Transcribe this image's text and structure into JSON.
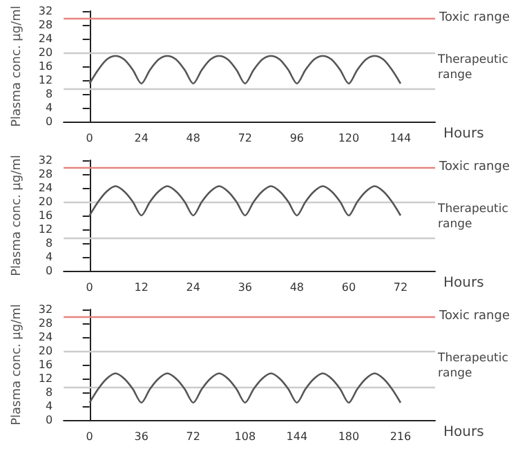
{
  "chart_data": [
    {
      "type": "line",
      "xlabel": "Hours",
      "ylabel": "Plasma conc. µg/ml",
      "xlim": [
        -12,
        160
      ],
      "xticks": [
        0,
        24,
        48,
        72,
        96,
        120,
        144
      ],
      "ylim": [
        0,
        32
      ],
      "yticks": [
        0,
        4,
        8,
        12,
        16,
        20,
        24,
        28,
        32
      ],
      "grid": false,
      "marker": "none",
      "line_style": "solid",
      "x": [
        0,
        4,
        8,
        12,
        16,
        20,
        24,
        28,
        32,
        36,
        40,
        44,
        48,
        52,
        56,
        60,
        64,
        68,
        72,
        76,
        80,
        84,
        88,
        92,
        96,
        100,
        104,
        108,
        112,
        116,
        120,
        124,
        128,
        132,
        136,
        140,
        144
      ],
      "series": [
        {
          "color": "#555555",
          "values": [
            11,
            15,
            18,
            19,
            18,
            15,
            11,
            15,
            18,
            19,
            18,
            15,
            11,
            15,
            18,
            19,
            18,
            15,
            11,
            15,
            18,
            19,
            18,
            15,
            11,
            15,
            18,
            19,
            18,
            15,
            11,
            15,
            18,
            19,
            18,
            15,
            11
          ]
        }
      ],
      "ref_lines": [
        {
          "axis": "y",
          "value": 30,
          "label": "Toxic range",
          "color": "#e8837e"
        },
        {
          "axis": "y",
          "value": 20,
          "label": null,
          "color": "#cccccc"
        },
        {
          "axis": "y",
          "value": 9.5,
          "label": null,
          "color": "#cccccc"
        }
      ],
      "annotations": [
        "Therapeutic range"
      ]
    },
    {
      "type": "line",
      "xlabel": "Hours",
      "ylabel": "Plasma conc. µg/ml",
      "xlim": [
        -6,
        80
      ],
      "xticks": [
        0,
        12,
        24,
        36,
        48,
        60,
        72
      ],
      "ylim": [
        0,
        32
      ],
      "yticks": [
        0,
        4,
        8,
        12,
        16,
        20,
        24,
        28,
        32
      ],
      "grid": false,
      "marker": "none",
      "line_style": "solid",
      "x": [
        0,
        2,
        4,
        6,
        8,
        10,
        12,
        14,
        16,
        18,
        20,
        22,
        24,
        26,
        28,
        30,
        32,
        34,
        36,
        38,
        40,
        42,
        44,
        46,
        48,
        50,
        52,
        54,
        56,
        58,
        60,
        62,
        64,
        66,
        68,
        70,
        72
      ],
      "series": [
        {
          "color": "#555555",
          "values": [
            16,
            20,
            23,
            24.5,
            23,
            20,
            16,
            20,
            23,
            24.5,
            23,
            20,
            16,
            20,
            23,
            24.5,
            23,
            20,
            16,
            20,
            23,
            24.5,
            23,
            20,
            16,
            20,
            23,
            24.5,
            23,
            20,
            16,
            20,
            23,
            24.5,
            23,
            20,
            16
          ]
        }
      ],
      "ref_lines": [
        {
          "axis": "y",
          "value": 30,
          "label": "Toxic range",
          "color": "#e8837e"
        },
        {
          "axis": "y",
          "value": 20,
          "label": null,
          "color": "#cccccc"
        },
        {
          "axis": "y",
          "value": 9.5,
          "label": null,
          "color": "#cccccc"
        }
      ],
      "annotations": [
        "Therapeutic range"
      ]
    },
    {
      "type": "line",
      "xlabel": "Hours",
      "ylabel": "Plasma conc. µg/ml",
      "xlim": [
        -18,
        240
      ],
      "xticks": [
        0,
        36,
        72,
        108,
        144,
        180,
        216
      ],
      "ylim": [
        0,
        32
      ],
      "yticks": [
        0,
        4,
        8,
        12,
        16,
        20,
        24,
        28,
        32
      ],
      "grid": false,
      "marker": "none",
      "line_style": "solid",
      "x": [
        0,
        6,
        12,
        18,
        24,
        30,
        36,
        42,
        48,
        54,
        60,
        66,
        72,
        78,
        84,
        90,
        96,
        102,
        108,
        114,
        120,
        126,
        132,
        138,
        144,
        150,
        156,
        162,
        168,
        174,
        180,
        186,
        192,
        198,
        204,
        210,
        216
      ],
      "series": [
        {
          "color": "#555555",
          "values": [
            5,
            9,
            12,
            13.5,
            12,
            9,
            5,
            9,
            12,
            13.5,
            12,
            9,
            5,
            9,
            12,
            13.5,
            12,
            9,
            5,
            9,
            12,
            13.5,
            12,
            9,
            5,
            9,
            12,
            13.5,
            12,
            9,
            5,
            9,
            12,
            13.5,
            12,
            9,
            5
          ]
        }
      ],
      "ref_lines": [
        {
          "axis": "y",
          "value": 30,
          "label": "Toxic range",
          "color": "#e8837e"
        },
        {
          "axis": "y",
          "value": 20,
          "label": null,
          "color": "#cccccc"
        },
        {
          "axis": "y",
          "value": 9.5,
          "label": null,
          "color": "#cccccc"
        }
      ],
      "annotations": [
        "Therapeutic range"
      ]
    }
  ]
}
